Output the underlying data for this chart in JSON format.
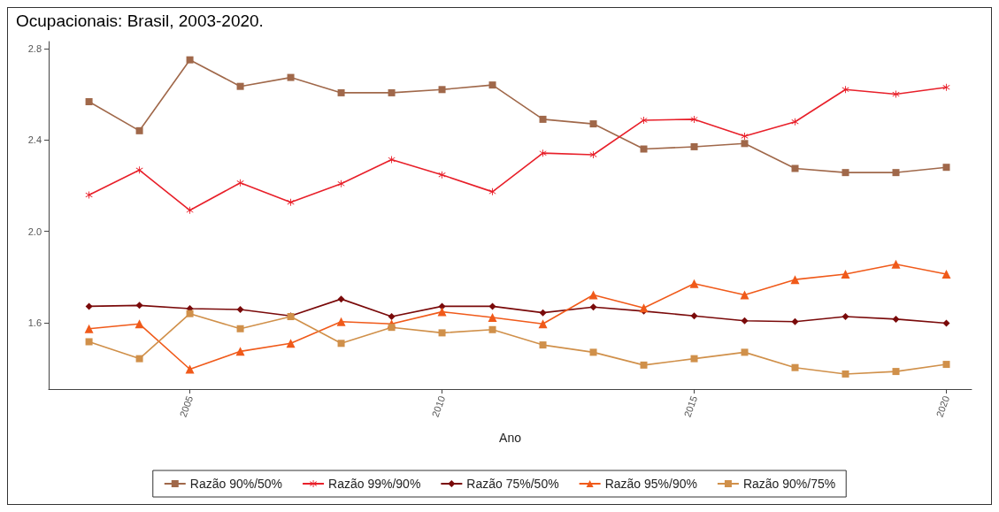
{
  "chart_data": {
    "type": "line",
    "title": "Ocupacionais: Brasil, 2003-2020.",
    "xlabel": "Ano",
    "x": [
      2003,
      2004,
      2005,
      2006,
      2007,
      2008,
      2009,
      2010,
      2011,
      2012,
      2013,
      2014,
      2015,
      2016,
      2017,
      2018,
      2019,
      2020
    ],
    "xlim": [
      2002.2,
      2020.5
    ],
    "xticks": [
      2005,
      2010,
      2015,
      2020
    ],
    "ylim": [
      1.31,
      2.83
    ],
    "yticks": [
      1.6,
      {
        "value": 2.0,
        "label": "2.0"
      },
      2.4,
      2.8
    ],
    "grid": false,
    "legend": "bottom",
    "line_style": "solid",
    "series": [
      {
        "name": "Razão 90%/50%",
        "color": "#a0684a",
        "marker": "square",
        "values": [
          2.567,
          2.44,
          2.75,
          2.634,
          2.673,
          2.606,
          2.606,
          2.62,
          2.64,
          2.49,
          2.47,
          2.36,
          2.37,
          2.384,
          2.275,
          2.257,
          2.257,
          2.28
        ]
      },
      {
        "name": "Razão 99%/90%",
        "color": "#e8202a",
        "marker": "star",
        "values": [
          2.159,
          2.268,
          2.092,
          2.212,
          2.127,
          2.208,
          2.314,
          2.247,
          2.173,
          2.342,
          2.335,
          2.486,
          2.49,
          2.416,
          2.479,
          2.62,
          2.6,
          2.63
        ]
      },
      {
        "name": "Razão 75%/50%",
        "color": "#7a0a0a",
        "marker": "diamond",
        "values": [
          1.672,
          1.676,
          1.662,
          1.658,
          1.63,
          1.704,
          1.627,
          1.672,
          1.672,
          1.644,
          1.669,
          1.651,
          1.63,
          1.609,
          1.605,
          1.627,
          1.616,
          1.598
        ]
      },
      {
        "name": "Razão 95%/90%",
        "color": "#f05a1a",
        "marker": "triangle",
        "values": [
          1.574,
          1.595,
          1.397,
          1.475,
          1.51,
          1.605,
          1.595,
          1.648,
          1.623,
          1.595,
          1.722,
          1.665,
          1.771,
          1.722,
          1.789,
          1.813,
          1.856,
          1.813
        ]
      },
      {
        "name": "Razão 90%/75%",
        "color": "#d0904a",
        "marker": "square",
        "values": [
          1.517,
          1.443,
          1.64,
          1.574,
          1.627,
          1.51,
          1.58,
          1.556,
          1.57,
          1.503,
          1.471,
          1.415,
          1.443,
          1.471,
          1.404,
          1.376,
          1.387,
          1.418
        ]
      }
    ]
  }
}
